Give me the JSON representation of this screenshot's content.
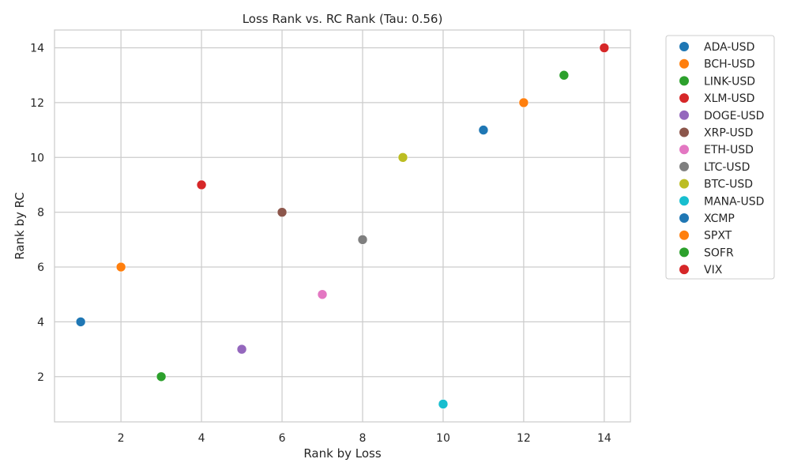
{
  "chart_data": {
    "type": "scatter",
    "title": "Loss Rank vs. RC Rank (Tau: 0.56)",
    "xlabel": "Rank by Loss",
    "ylabel": "Rank by RC",
    "xlim": [
      0.35,
      14.65
    ],
    "ylim": [
      0.35,
      14.65
    ],
    "xticks": [
      2,
      4,
      6,
      8,
      10,
      12,
      14
    ],
    "yticks": [
      2,
      4,
      6,
      8,
      10,
      12,
      14
    ],
    "grid": true,
    "legend_position": "outside-right",
    "series": [
      {
        "name": "ADA-USD",
        "color": "#1f77b4",
        "x": 1,
        "y": 4
      },
      {
        "name": "BCH-USD",
        "color": "#ff7f0e",
        "x": 2,
        "y": 6
      },
      {
        "name": "LINK-USD",
        "color": "#2ca02c",
        "x": 3,
        "y": 2
      },
      {
        "name": "XLM-USD",
        "color": "#d62728",
        "x": 4,
        "y": 9
      },
      {
        "name": "DOGE-USD",
        "color": "#9467bd",
        "x": 5,
        "y": 3
      },
      {
        "name": "XRP-USD",
        "color": "#8c564b",
        "x": 6,
        "y": 8
      },
      {
        "name": "ETH-USD",
        "color": "#e377c2",
        "x": 7,
        "y": 5
      },
      {
        "name": "LTC-USD",
        "color": "#7f7f7f",
        "x": 8,
        "y": 7
      },
      {
        "name": "BTC-USD",
        "color": "#bcbd22",
        "x": 9,
        "y": 10
      },
      {
        "name": "MANA-USD",
        "color": "#17becf",
        "x": 10,
        "y": 1
      },
      {
        "name": "XCMP",
        "color": "#1f77b4",
        "x": 11,
        "y": 11
      },
      {
        "name": "SPXT",
        "color": "#ff7f0e",
        "x": 12,
        "y": 12
      },
      {
        "name": "SOFR",
        "color": "#2ca02c",
        "x": 13,
        "y": 13
      },
      {
        "name": "VIX",
        "color": "#d62728",
        "x": 14,
        "y": 14
      }
    ]
  }
}
